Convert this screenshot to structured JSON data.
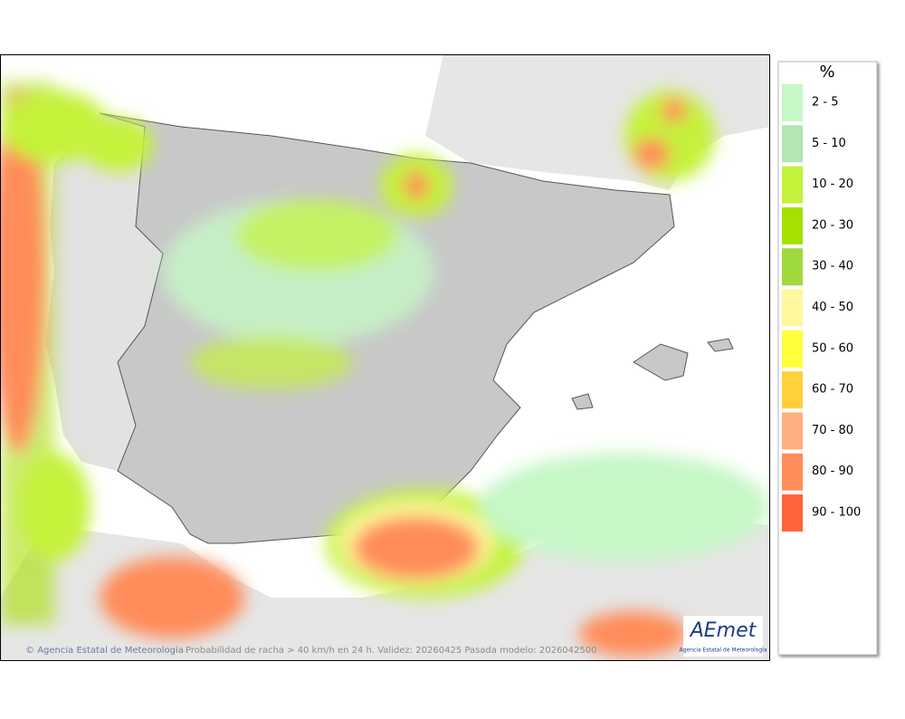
{
  "legend": {
    "title": "%",
    "items": [
      {
        "label": "2 - 5",
        "color": "#c6f7c6"
      },
      {
        "label": "5 - 10",
        "color": "#b2e6b2"
      },
      {
        "label": "10 - 20",
        "color": "#c4f23a"
      },
      {
        "label": "20 - 30",
        "color": "#a6e000"
      },
      {
        "label": "30 - 40",
        "color": "#9fd93e"
      },
      {
        "label": "40 - 50",
        "color": "#fff89e"
      },
      {
        "label": "50 - 60",
        "color": "#ffff3c"
      },
      {
        "label": "60 - 70",
        "color": "#ffd03c"
      },
      {
        "label": "70 - 80",
        "color": "#ffb080"
      },
      {
        "label": "80 - 90",
        "color": "#ff8c5a"
      },
      {
        "label": "90 - 100",
        "color": "#ff643c"
      }
    ]
  },
  "footer": {
    "copyright": "Agencia Estatal de Meteorología",
    "caption": "Probabilidad de racha > 40 km/h en 24 h. Validez: 20260425 Pasada modelo: 2026042500"
  },
  "logo": {
    "name": "AEmet",
    "subtitle": "Agencia Estatal de Meteorología"
  }
}
